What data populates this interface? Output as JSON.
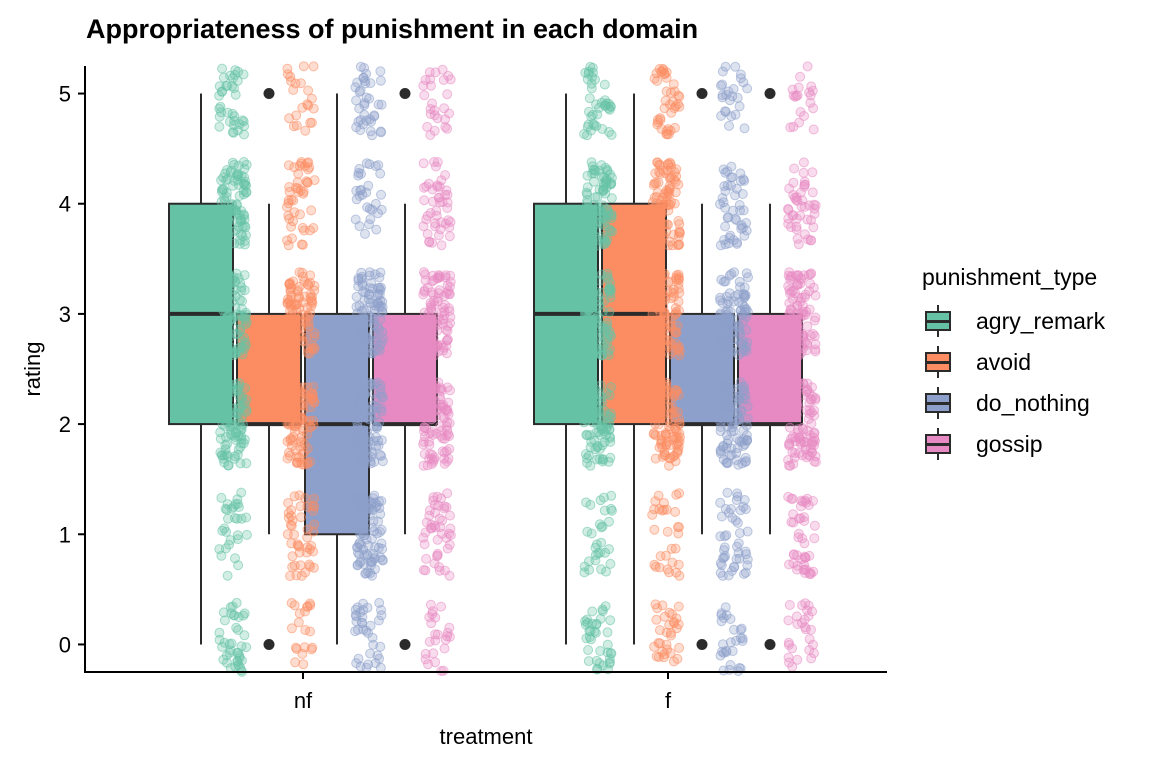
{
  "chart_data": {
    "type": "box",
    "title": "Appropriateness of punishment in each domain",
    "xlabel": "treatment",
    "ylabel": "rating",
    "categories": [
      "nf",
      "f"
    ],
    "y_ticks": [
      0,
      1,
      2,
      3,
      4,
      5
    ],
    "ylim": [
      -0.25,
      5.25
    ],
    "legend_title": "punishment_type",
    "legend_position": "right",
    "grid": false,
    "series": [
      {
        "name": "agry_remark",
        "color": "#66c2a5",
        "boxes": [
          {
            "category": "nf",
            "min": 0,
            "q1": 2,
            "median": 3,
            "q3": 4,
            "max": 5,
            "outliers": []
          },
          {
            "category": "f",
            "min": 0,
            "q1": 2,
            "median": 3,
            "q3": 4,
            "max": 5,
            "outliers": []
          }
        ]
      },
      {
        "name": "avoid",
        "color": "#fc8d62",
        "boxes": [
          {
            "category": "nf",
            "min": 1,
            "q1": 2,
            "median": 2,
            "q3": 3,
            "max": 4,
            "outliers": [
              0,
              5
            ]
          },
          {
            "category": "f",
            "min": 0,
            "q1": 2,
            "median": 3,
            "q3": 4,
            "max": 5,
            "outliers": []
          }
        ]
      },
      {
        "name": "do_nothing",
        "color": "#8da0cb",
        "boxes": [
          {
            "category": "nf",
            "min": 0,
            "q1": 1,
            "median": 2,
            "q3": 3,
            "max": 5,
            "outliers": []
          },
          {
            "category": "f",
            "min": 1,
            "q1": 2,
            "median": 2,
            "q3": 3,
            "max": 4,
            "outliers": [
              0,
              5
            ]
          }
        ]
      },
      {
        "name": "gossip",
        "color": "#e78ac3",
        "boxes": [
          {
            "category": "nf",
            "min": 1,
            "q1": 2,
            "median": 2,
            "q3": 3,
            "max": 4,
            "outliers": [
              0,
              5
            ]
          },
          {
            "category": "f",
            "min": 1,
            "q1": 2,
            "median": 2,
            "q3": 3,
            "max": 4,
            "outliers": [
              0,
              5
            ]
          }
        ]
      }
    ],
    "jitter_points": true,
    "jitter_alpha": 0.3
  }
}
